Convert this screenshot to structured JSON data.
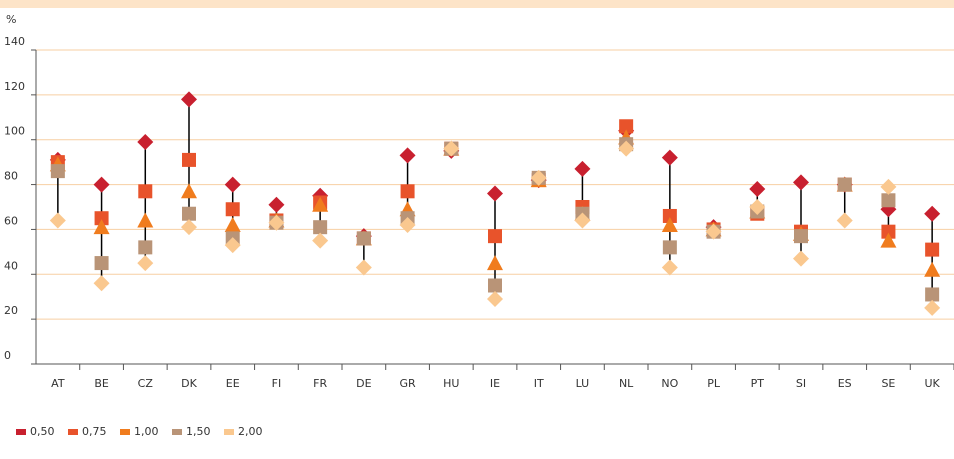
{
  "chart_data": {
    "type": "scatter",
    "y_label": "%",
    "categories": [
      "AT",
      "BE",
      "CZ",
      "DK",
      "EE",
      "FI",
      "FR",
      "DE",
      "GR",
      "HU",
      "IE",
      "IT",
      "LU",
      "NL",
      "NO",
      "PL",
      "PT",
      "SI",
      "ES",
      "SE",
      "UK"
    ],
    "series": [
      {
        "name": "0,50",
        "color": "#c8202f",
        "marker": "diamond",
        "values": [
          91,
          80,
          99,
          118,
          80,
          71,
          75,
          57,
          93,
          95,
          76,
          82,
          87,
          104,
          92,
          61,
          78,
          81,
          80,
          69,
          67
        ]
      },
      {
        "name": "0,75",
        "color": "#e8532b",
        "marker": "square",
        "values": [
          90,
          65,
          77,
          91,
          69,
          64,
          72,
          56,
          77,
          96,
          57,
          82,
          70,
          106,
          66,
          60,
          67,
          59,
          80,
          59,
          51
        ]
      },
      {
        "name": "1,00",
        "color": "#f07c1e",
        "marker": "triangle",
        "values": [
          89,
          61,
          64,
          77,
          62,
          64,
          71,
          56,
          69,
          96,
          45,
          82,
          67,
          101,
          62,
          60,
          68,
          58,
          80,
          55,
          42
        ]
      },
      {
        "name": "1,50",
        "color": "#b99477",
        "marker": "square",
        "values": [
          86,
          45,
          52,
          67,
          56,
          63,
          61,
          56,
          65,
          96,
          35,
          83,
          67,
          98,
          52,
          59,
          68,
          57,
          80,
          73,
          31
        ]
      },
      {
        "name": "2,00",
        "color": "#fac88f",
        "marker": "diamond",
        "values": [
          64,
          36,
          45,
          61,
          53,
          63,
          55,
          43,
          62,
          96,
          29,
          83,
          64,
          96,
          43,
          59,
          70,
          47,
          64,
          79,
          25
        ]
      }
    ],
    "ylim": [
      0,
      140
    ],
    "yticks": [
      0,
      20,
      40,
      60,
      80,
      100,
      120,
      140
    ],
    "grid": true,
    "range_lines": true
  }
}
